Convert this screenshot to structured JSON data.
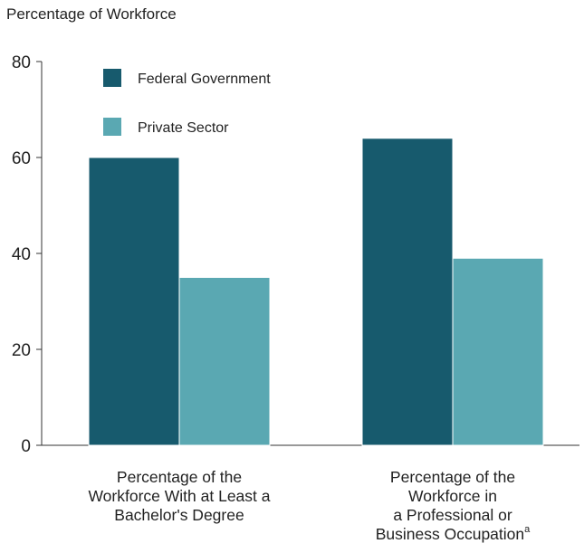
{
  "chart_data": {
    "type": "bar",
    "title": "",
    "ylabel": "Percentage of Workforce",
    "ylim": [
      0,
      80
    ],
    "yticks": [
      0,
      20,
      40,
      60,
      80
    ],
    "categories": [
      {
        "lines": [
          "Percentage of the",
          "Workforce With at Least a",
          "Bachelor's Degree"
        ],
        "superscript": ""
      },
      {
        "lines": [
          "Percentage of the",
          "Workforce in",
          "a Professional or",
          "Business Occupation"
        ],
        "superscript": "a"
      }
    ],
    "series": [
      {
        "name": "Federal Government",
        "color": "#175a6d",
        "values": [
          60,
          64
        ]
      },
      {
        "name": "Private Sector",
        "color": "#5aa8b2",
        "values": [
          35,
          39
        ]
      }
    ],
    "legend_position": "top-left, inside plot area",
    "grid": false
  }
}
